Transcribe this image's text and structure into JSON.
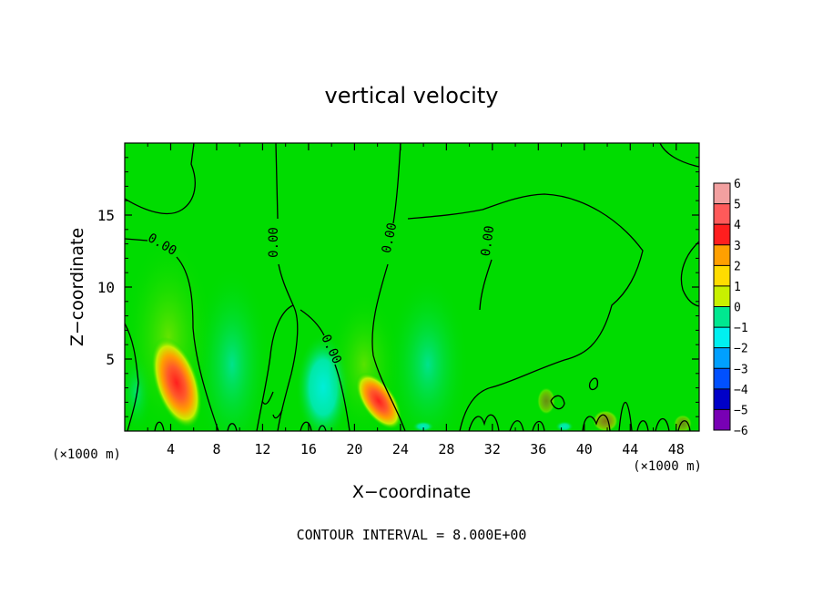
{
  "chart_data": {
    "type": "heatmap",
    "title": "vertical velocity",
    "xlabel": "X−coordinate",
    "ylabel": "Z−coordinate",
    "x_unit_label": "(×1000 m)",
    "y_unit_label": "(×1000 m)",
    "xlim": [
      0,
      50
    ],
    "ylim": [
      0,
      20
    ],
    "x_ticks": [
      4,
      8,
      12,
      16,
      20,
      24,
      28,
      32,
      36,
      40,
      44,
      48
    ],
    "x_tick_labels": [
      "4",
      "8",
      "12",
      "16",
      "20",
      "24",
      "28",
      "32",
      "36",
      "40",
      "44",
      "48"
    ],
    "y_ticks": [
      5,
      10,
      15
    ],
    "y_tick_labels": [
      "5",
      "10",
      "15"
    ],
    "footnote": "CONTOUR INTERVAL = 8.000E+00",
    "contour_labels": [
      "0.00",
      "0.00",
      "0.00",
      "0.00",
      "0.00"
    ],
    "colorbar": {
      "levels": [
        6,
        5,
        4,
        3,
        2,
        1,
        0,
        -1,
        -2,
        -3,
        -4,
        -5,
        -6
      ],
      "labels": [
        "6",
        "5",
        "4",
        "3",
        "2",
        "1",
        "0",
        "−1",
        "−2",
        "−3",
        "−4",
        "−5",
        "−6"
      ],
      "colors": [
        "#f2a0a0",
        "#ff5a5a",
        "#ff1e1e",
        "#ffa000",
        "#ffdc00",
        "#c8f000",
        "#00dc00",
        "#00e890",
        "#00f0f0",
        "#00a0ff",
        "#0050ff",
        "#0000c8",
        "#7800b4"
      ]
    },
    "updrafts": [
      {
        "x": 4.5,
        "z": 3.5,
        "peak": 5.5
      },
      {
        "x": 22.5,
        "z": 2.2,
        "peak": 5.0
      }
    ],
    "downdrafts": [
      {
        "x": 9.5,
        "z": 5.0,
        "min": -1.5
      },
      {
        "x": 17.5,
        "z": 2.5,
        "min": -2.5
      },
      {
        "x": 26.5,
        "z": 4.0,
        "min": -1.5
      }
    ]
  }
}
